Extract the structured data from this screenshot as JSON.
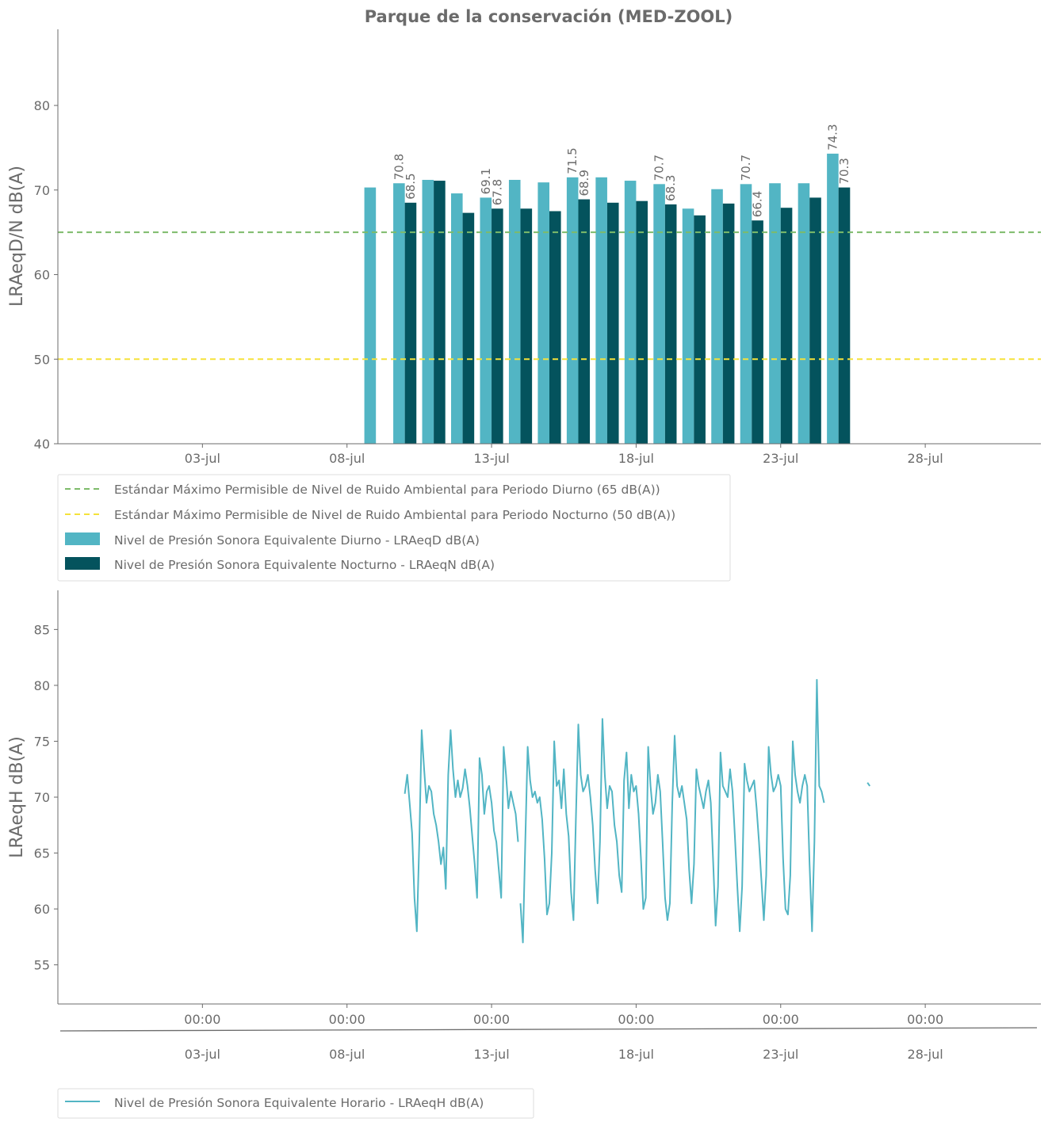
{
  "chart_data": [
    {
      "type": "bar",
      "title": "Parque de la conservación  (MED-ZOOL)",
      "ylabel": "LRAeqD/N dB(A)",
      "xlabel": "",
      "ylim": [
        40,
        89
      ],
      "yticks": [
        40,
        50,
        60,
        70,
        80
      ],
      "xlim": [
        "2023-06-28",
        "2023-08-01"
      ],
      "xtick_labels": [
        "03-jul",
        "08-jul",
        "13-jul",
        "18-jul",
        "23-jul",
        "28-jul"
      ],
      "xtick_dates": [
        "2023-07-03",
        "2023-07-08",
        "2023-07-13",
        "2023-07-18",
        "2023-07-23",
        "2023-07-28"
      ],
      "grid": false,
      "legend_position": "below-left",
      "reference_lines": [
        {
          "name": "Estándar Máximo Permisible de Nivel de Ruido Ambiental para Periodo Diurno (65 dB(A))",
          "value": 65,
          "color": "#7dbb6a",
          "style": "dashed"
        },
        {
          "name": "Estándar Máximo Permisible de Nivel de Ruido Ambiental para Periodo Nocturno (50 dB(A))",
          "value": 50,
          "color": "#f5e23a",
          "style": "dashed"
        }
      ],
      "series": [
        {
          "name": "Nivel de Presión Sonora Equivalente Diurno - LRAeqD dB(A)",
          "color": "#52b5c4",
          "points": [
            {
              "date": "2023-07-09",
              "value": 70.3
            },
            {
              "date": "2023-07-10",
              "value": 70.8,
              "label": "70.8"
            },
            {
              "date": "2023-07-11",
              "value": 71.2
            },
            {
              "date": "2023-07-12",
              "value": 69.6
            },
            {
              "date": "2023-07-13",
              "value": 69.1,
              "label": "69.1"
            },
            {
              "date": "2023-07-14",
              "value": 71.2
            },
            {
              "date": "2023-07-15",
              "value": 70.9
            },
            {
              "date": "2023-07-16",
              "value": 71.5,
              "label": "71.5"
            },
            {
              "date": "2023-07-17",
              "value": 71.5
            },
            {
              "date": "2023-07-18",
              "value": 71.1
            },
            {
              "date": "2023-07-19",
              "value": 70.7,
              "label": "70.7"
            },
            {
              "date": "2023-07-20",
              "value": 67.8
            },
            {
              "date": "2023-07-21",
              "value": 70.1
            },
            {
              "date": "2023-07-22",
              "value": 70.7,
              "label": "70.7"
            },
            {
              "date": "2023-07-23",
              "value": 70.8
            },
            {
              "date": "2023-07-24",
              "value": 70.8
            },
            {
              "date": "2023-07-25",
              "value": 74.3,
              "label": "74.3"
            }
          ]
        },
        {
          "name": "Nivel de Presión Sonora Equivalente Nocturno - LRAeqN dB(A)",
          "color": "#04535d",
          "points": [
            {
              "date": "2023-07-10",
              "value": 68.5,
              "label": "68.5"
            },
            {
              "date": "2023-07-11",
              "value": 71.1
            },
            {
              "date": "2023-07-12",
              "value": 67.3
            },
            {
              "date": "2023-07-13",
              "value": 67.8,
              "label": "67.8"
            },
            {
              "date": "2023-07-14",
              "value": 67.8
            },
            {
              "date": "2023-07-15",
              "value": 67.5
            },
            {
              "date": "2023-07-16",
              "value": 68.9,
              "label": "68.9"
            },
            {
              "date": "2023-07-17",
              "value": 68.5
            },
            {
              "date": "2023-07-18",
              "value": 68.7
            },
            {
              "date": "2023-07-19",
              "value": 68.3,
              "label": "68.3"
            },
            {
              "date": "2023-07-20",
              "value": 67.0
            },
            {
              "date": "2023-07-21",
              "value": 68.4
            },
            {
              "date": "2023-07-22",
              "value": 66.4,
              "label": "66.4"
            },
            {
              "date": "2023-07-23",
              "value": 67.9
            },
            {
              "date": "2023-07-24",
              "value": 69.1
            },
            {
              "date": "2023-07-25",
              "value": 70.3,
              "label": "70.3"
            }
          ]
        }
      ]
    },
    {
      "type": "line",
      "title": "",
      "ylabel": "LRAeqH dB(A)",
      "xlabel": "",
      "ylim": [
        51.5,
        88.5
      ],
      "yticks": [
        55,
        60,
        65,
        70,
        75,
        80,
        85
      ],
      "xlim": [
        "2023-06-28",
        "2023-08-01"
      ],
      "xtick_labels_primary": [
        "00:00",
        "00:00",
        "00:00",
        "00:00",
        "00:00",
        "00:00"
      ],
      "xtick_labels_secondary": [
        "03-jul",
        "08-jul",
        "13-jul",
        "18-jul",
        "23-jul",
        "28-jul"
      ],
      "xtick_dates": [
        "2023-07-03",
        "2023-07-08",
        "2023-07-13",
        "2023-07-18",
        "2023-07-23",
        "2023-07-28"
      ],
      "grid": false,
      "legend_position": "below-left",
      "series": [
        {
          "name": "Nivel de Presión Sonora Equivalente Horario - LRAeqH dB(A)",
          "color": "#52b5c4",
          "segments": [
            {
              "start": "2023-07-10 00:00",
              "step_hours": 2,
              "values": [
                70.3,
                72.0,
                69.5,
                66.8,
                61.0,
                58.0,
                66.0,
                76.0,
                72.5,
                69.5,
                71.0,
                70.5,
                68.5,
                67.5,
                66.0,
                64.0,
                65.5,
                61.8,
                72.0,
                76.0,
                72.5,
                70.0,
                71.5,
                70.0,
                70.8,
                72.5,
                71.0,
                69.0,
                66.5,
                64.0,
                61.0,
                73.5,
                72.0,
                68.5,
                70.5,
                71.0,
                69.5,
                67.0,
                66.0,
                63.5,
                61.0,
                74.5,
                72.0,
                69.0,
                70.5,
                69.5,
                68.5,
                66.0
              ]
            },
            {
              "start": "2023-07-14 00:00",
              "step_hours": 2,
              "values": [
                60.5,
                57.0,
                66.0,
                74.5,
                71.5,
                70.0,
                70.5,
                69.5,
                70.0,
                68.0,
                64.5,
                59.5,
                60.5,
                65.0,
                75.0,
                71.0,
                71.5,
                69.0,
                72.5,
                68.5,
                66.5,
                61.5,
                59.0,
                68.0,
                76.5,
                72.0,
                70.5,
                71.0,
                72.0,
                70.0,
                67.5,
                63.5,
                60.5,
                66.0,
                77.0,
                72.0,
                69.0,
                71.0,
                70.5,
                67.5,
                66.0,
                63.0,
                61.5,
                71.5,
                74.0,
                69.0,
                72.0,
                70.5,
                71.0,
                68.5,
                64.5,
                60.0,
                61.0,
                74.5,
                71.0,
                68.5,
                69.5,
                72.0,
                70.5,
                66.0,
                61.0,
                59.0,
                60.5,
                69.5,
                75.5,
                71.0,
                70.0,
                71.0,
                69.5,
                68.0,
                63.5,
                60.5,
                64.0,
                72.5,
                71.0,
                70.0,
                69.0,
                70.5,
                71.5,
                69.5,
                64.0,
                58.5,
                62.0,
                74.0,
                71.0,
                70.5,
                70.0,
                72.5,
                70.5,
                66.5,
                62.0,
                58.0,
                62.0,
                73.0,
                71.5,
                70.5,
                71.0,
                71.5,
                69.0,
                66.0,
                62.5,
                59.0,
                63.0,
                74.5,
                72.0,
                70.5,
                71.0,
                72.0,
                71.0,
                64.5,
                60.0,
                59.5,
                63.0,
                75.0,
                72.0,
                70.5,
                69.5,
                71.0,
                72.0,
                71.0,
                64.0,
                58.0,
                66.0,
                80.5,
                71.0,
                70.5,
                69.5
              ]
            },
            {
              "start": "2023-07-26 00:00",
              "step_hours": 2,
              "values": [
                71.3,
                71.0
              ]
            }
          ]
        }
      ]
    }
  ]
}
